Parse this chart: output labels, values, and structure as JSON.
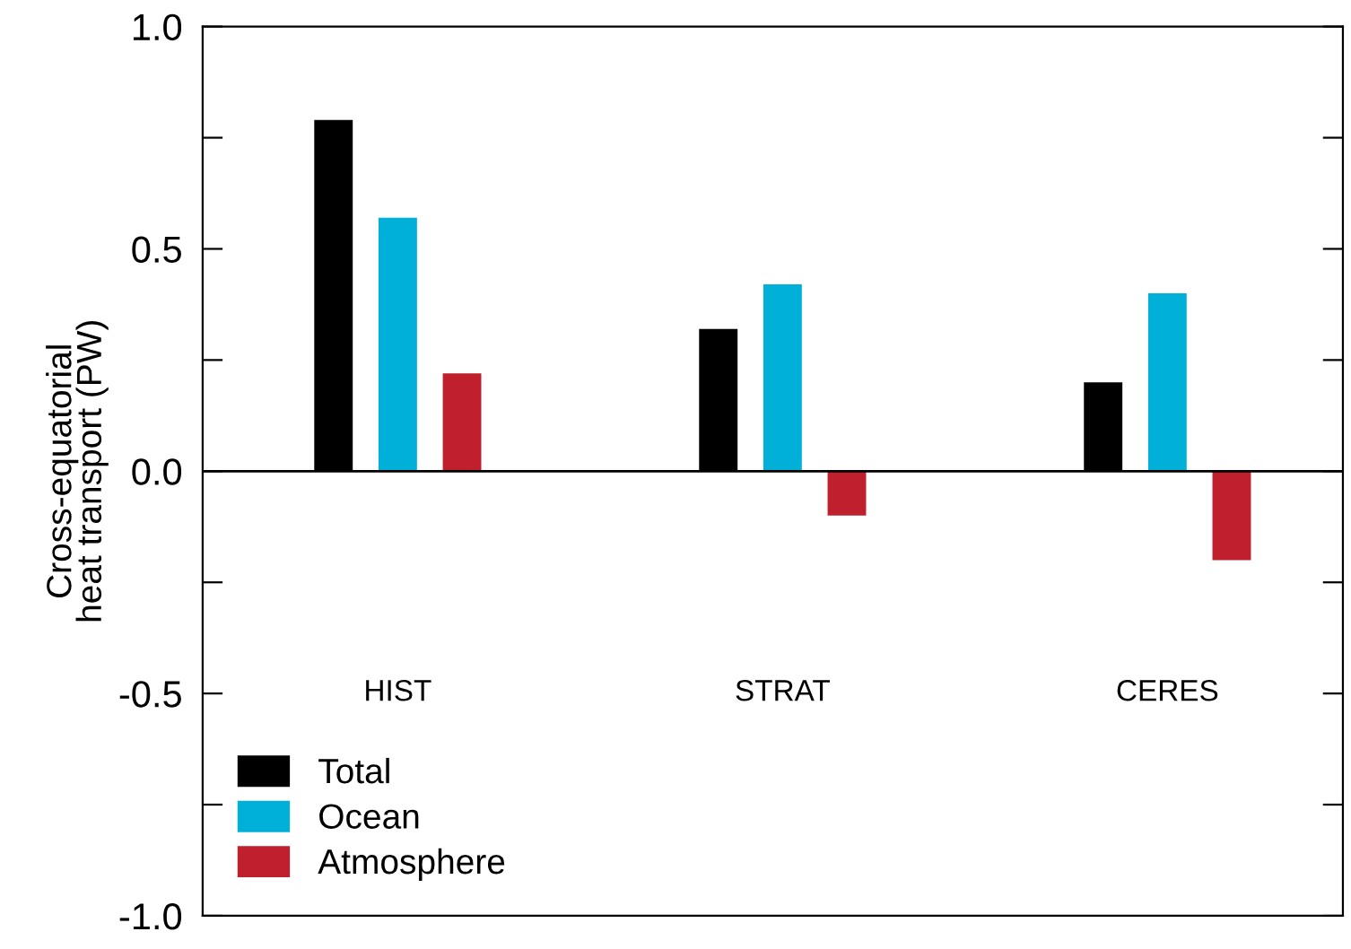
{
  "chart_data": {
    "type": "bar",
    "categories": [
      "HIST",
      "STRAT",
      "CERES"
    ],
    "ylabel": "Cross-equatorial\nheat transport (PW)",
    "series": [
      {
        "name": "Total",
        "color": "#000000",
        "values": [
          0.79,
          0.32,
          0.2
        ]
      },
      {
        "name": "Ocean",
        "color": "#00b0d8",
        "values": [
          0.57,
          0.42,
          0.4
        ]
      },
      {
        "name": "Atmosphere",
        "color": "#c0202e",
        "values": [
          0.22,
          -0.1,
          -0.2
        ]
      }
    ],
    "ylim": [
      -1.0,
      1.0
    ],
    "yticks": [
      {
        "value": -1.0,
        "label": "-1.0"
      },
      {
        "value": -0.75,
        "label": null
      },
      {
        "value": -0.5,
        "label": "-0.5"
      },
      {
        "value": -0.25,
        "label": null
      },
      {
        "value": 0.0,
        "label": "0.0"
      },
      {
        "value": 0.25,
        "label": null
      },
      {
        "value": 0.5,
        "label": "0.5"
      },
      {
        "value": 0.75,
        "label": null
      },
      {
        "value": 1.0,
        "label": "1.0"
      }
    ],
    "ref_lines": [
      {
        "axis": "y",
        "value": 0.0,
        "color": "#000000"
      }
    ],
    "legend": "bottom left",
    "grid": false
  }
}
